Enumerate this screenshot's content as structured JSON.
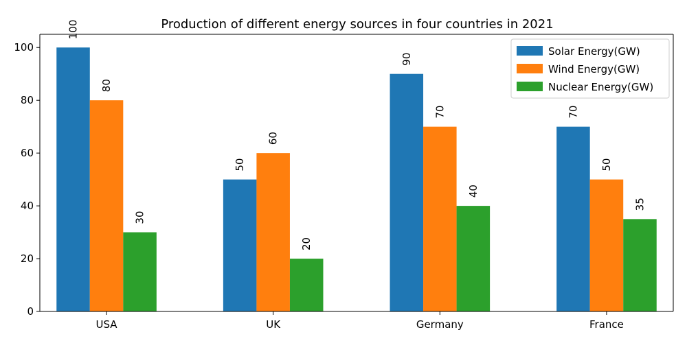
{
  "chart_data": {
    "type": "bar",
    "title": "Production of different energy sources in four countries in 2021",
    "xlabel": "",
    "ylabel": "",
    "categories": [
      "USA",
      "UK",
      "Germany",
      "France"
    ],
    "series": [
      {
        "name": "Solar Energy(GW)",
        "values": [
          100,
          50,
          90,
          70
        ],
        "color": "#1f77b4"
      },
      {
        "name": "Wind Energy(GW)",
        "values": [
          80,
          60,
          70,
          50
        ],
        "color": "#ff7f0e"
      },
      {
        "name": "Nuclear Energy(GW)",
        "values": [
          30,
          20,
          40,
          35
        ],
        "color": "#2ca02c"
      }
    ],
    "ylim": [
      0,
      105
    ],
    "yticks": [
      0,
      20,
      40,
      60,
      80,
      100
    ],
    "grid": false,
    "legend_position": "top-right",
    "data_labels": true
  }
}
